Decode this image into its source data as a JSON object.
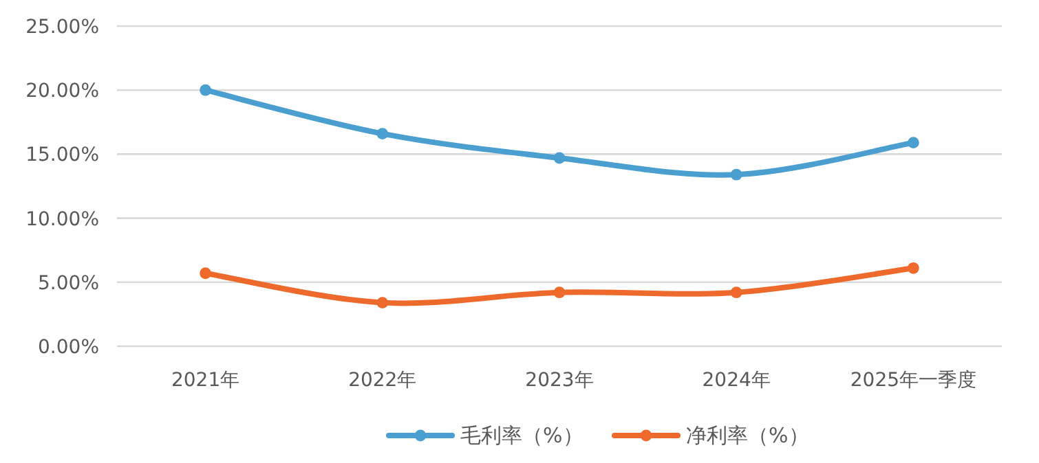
{
  "chart_data": {
    "type": "line",
    "categories": [
      "2021年",
      "2022年",
      "2023年",
      "2024年",
      "2025年一季度"
    ],
    "series": [
      {
        "name": "毛利率（%）",
        "color": "#4a9fd0",
        "values": [
          20.0,
          16.6,
          14.7,
          13.4,
          15.9
        ]
      },
      {
        "name": "净利率（%）",
        "color": "#ee6a2c",
        "values": [
          5.7,
          3.4,
          4.2,
          4.2,
          6.1
        ]
      }
    ],
    "ylim": [
      0,
      25
    ],
    "yticks": [
      {
        "value": 0,
        "label": "0.00%"
      },
      {
        "value": 5,
        "label": "5.00%"
      },
      {
        "value": 10,
        "label": "10.00%"
      },
      {
        "value": 15,
        "label": "15.00%"
      },
      {
        "value": 20,
        "label": "20.00%"
      },
      {
        "value": 25,
        "label": "25.00%"
      }
    ],
    "grid": "y",
    "legend": "bottom",
    "marker": "circle",
    "line_style": "solid"
  }
}
